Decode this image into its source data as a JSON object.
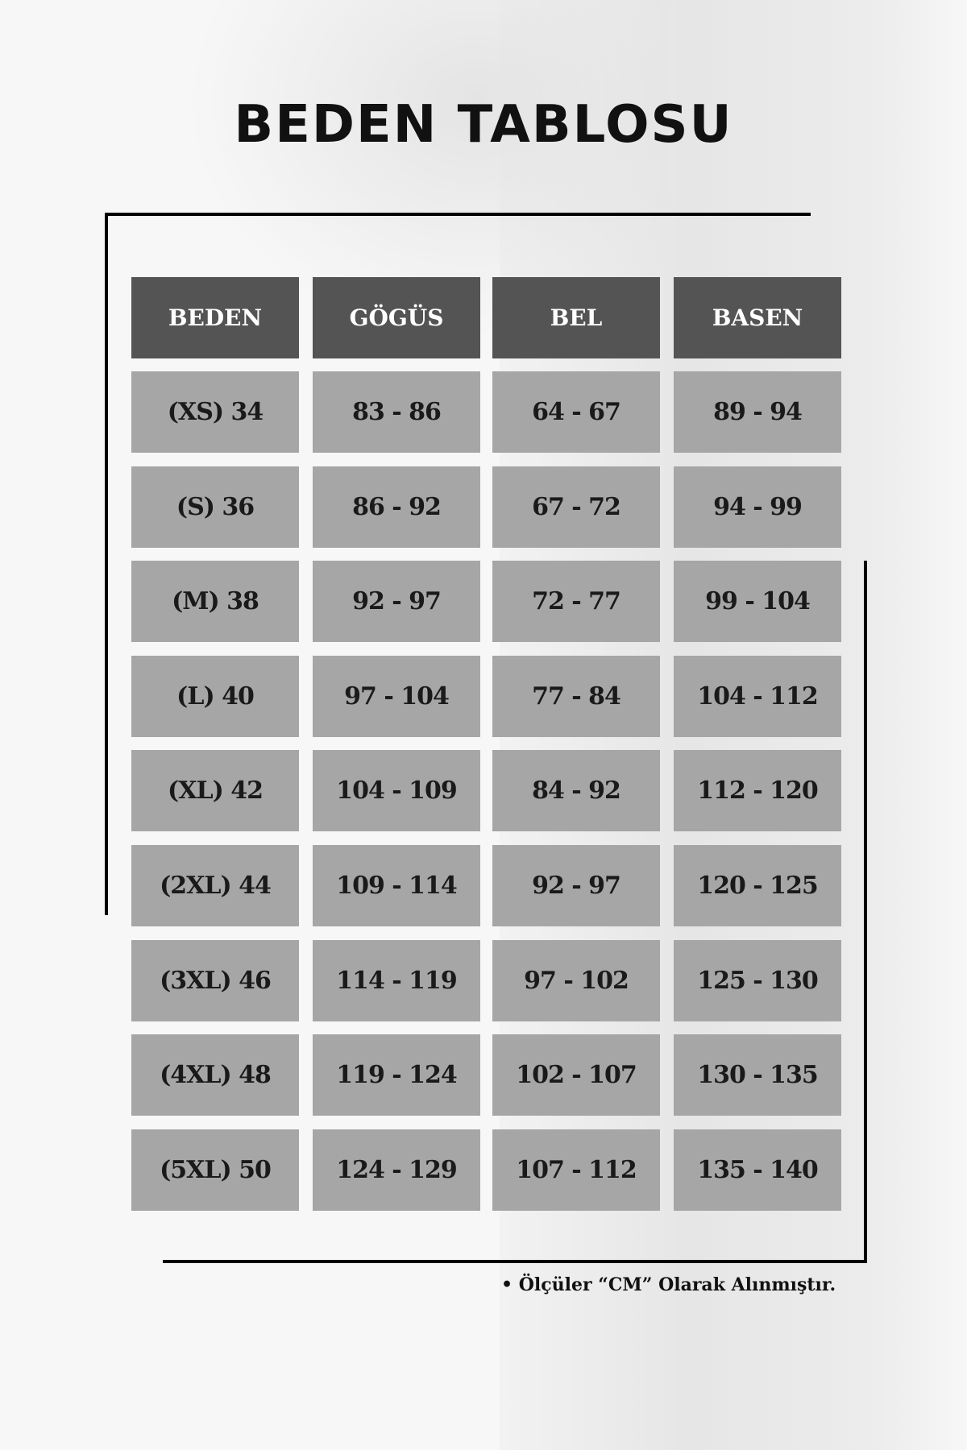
{
  "title": "BEDEN TABLOSU",
  "table": {
    "headers": [
      "BEDEN",
      "GÖGÜS",
      "BEL",
      "BASEN"
    ],
    "rows": [
      [
        "(XS) 34",
        "83 - 86",
        "64 - 67",
        "89 - 94"
      ],
      [
        "(S) 36",
        "86 - 92",
        "67 - 72",
        "94 - 99"
      ],
      [
        "(M) 38",
        "92 - 97",
        "72 - 77",
        "99 - 104"
      ],
      [
        "(L) 40",
        "97 - 104",
        "77 - 84",
        "104 - 112"
      ],
      [
        "(XL) 42",
        "104 - 109",
        "84 - 92",
        "112 - 120"
      ],
      [
        "(2XL) 44",
        "109 - 114",
        "92 - 97",
        "120 - 125"
      ],
      [
        "(3XL) 46",
        "114 - 119",
        "97 - 102",
        "125 - 130"
      ],
      [
        "(4XL) 48",
        "119 - 124",
        "102 - 107",
        "130 - 135"
      ],
      [
        "(5XL) 50",
        "124 - 129",
        "107 - 112",
        "135 - 140"
      ]
    ]
  },
  "footnote": "• Ölçüler “CM” Olarak Alınmıştır.",
  "colors": {
    "header": "#545454",
    "cell": "#a6a6a6"
  }
}
